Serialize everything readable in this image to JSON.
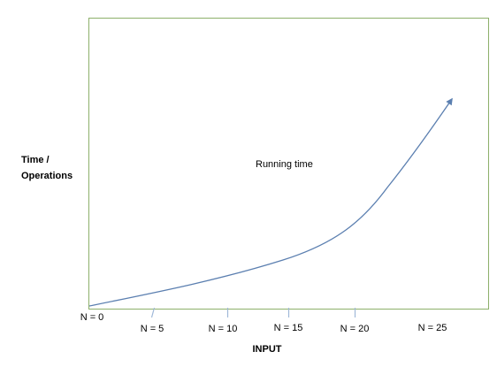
{
  "diagram": {
    "y_axis_label_lines": [
      "Time /",
      "Operations"
    ],
    "x_axis_label": "INPUT",
    "curve_label": "Running time",
    "ticks": [
      "N = 0",
      "N = 5",
      "N = 10",
      "N = 15",
      "N = 20",
      "N = 25"
    ]
  },
  "colors": {
    "frame": "#8db06a",
    "curve": "#5b7fb0",
    "tick": "#9fb8d8",
    "text": "#000000"
  }
}
